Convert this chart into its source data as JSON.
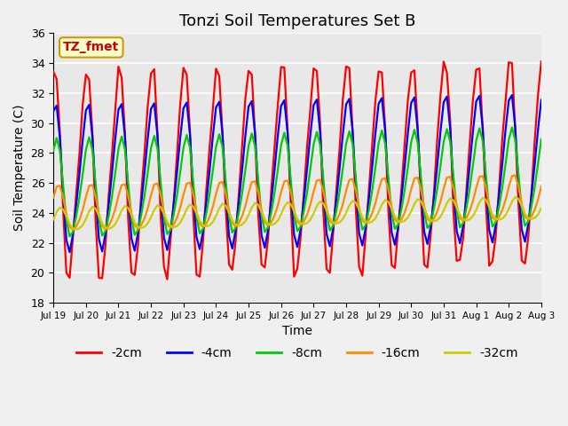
{
  "title": "Tonzi Soil Temperatures Set B",
  "xlabel": "Time",
  "ylabel": "Soil Temperature (C)",
  "annotation": "TZ_fmet",
  "ylim": [
    18,
    36
  ],
  "yticks": [
    18,
    20,
    22,
    24,
    26,
    28,
    30,
    32,
    34,
    36
  ],
  "x_tick_labels": [
    "Jul 19",
    "Jul 20",
    "Jul 21",
    "Jul 22",
    "Jul 23",
    "Jul 24",
    "Jul 25",
    "Jul 26",
    "Jul 27",
    "Jul 28",
    "Jul 29",
    "Jul 30",
    "Jul 31",
    "Aug 1",
    "Aug 2",
    "Aug 3"
  ],
  "x_tick_positions": [
    0,
    1,
    2,
    3,
    4,
    5,
    6,
    7,
    8,
    9,
    10,
    11,
    12,
    13,
    14,
    15
  ],
  "line_colors": [
    "#ff0000",
    "#0000ff",
    "#00cc00",
    "#ff8c00",
    "#cccc00"
  ],
  "line_labels": [
    "-2cm",
    "-4cm",
    "-8cm",
    "-16cm",
    "-32cm"
  ],
  "bg_color": "#e8e8e8",
  "grid_color": "#ffffff",
  "title_fontsize": 13,
  "axis_fontsize": 10,
  "legend_fontsize": 10
}
